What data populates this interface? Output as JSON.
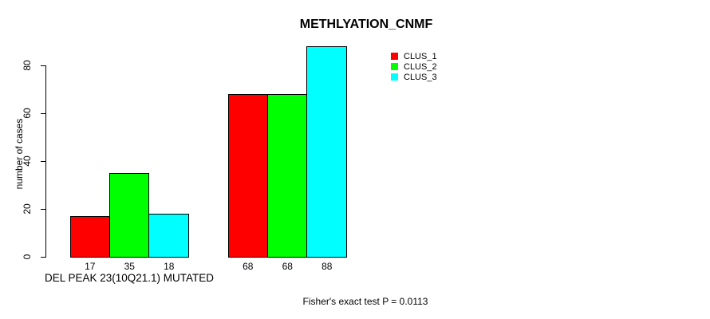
{
  "chart_data": {
    "type": "bar",
    "title": "METHLYATION_CNMF",
    "ylabel": "number of cases",
    "xlabel": "DEL PEAK 23(10Q21.1) MUTATED",
    "annotation": "Fisher's exact test P = 0.0113",
    "categories": [
      "DEL PEAK 23(10Q21.1) MUTATED",
      ""
    ],
    "series": [
      {
        "name": "CLUS_1",
        "color": "#ff0000",
        "values": [
          17,
          68
        ]
      },
      {
        "name": "CLUS_2",
        "color": "#00ff00",
        "values": [
          35,
          68
        ]
      },
      {
        "name": "CLUS_3",
        "color": "#00ffff",
        "values": [
          18,
          88
        ]
      }
    ],
    "yticks": [
      0,
      20,
      40,
      60,
      80
    ],
    "ylim": [
      0,
      88
    ],
    "grid": false,
    "legend_position": "top-right",
    "bar_border_color": "#000000",
    "axis_color": "#000000",
    "background": "#ffffff"
  }
}
